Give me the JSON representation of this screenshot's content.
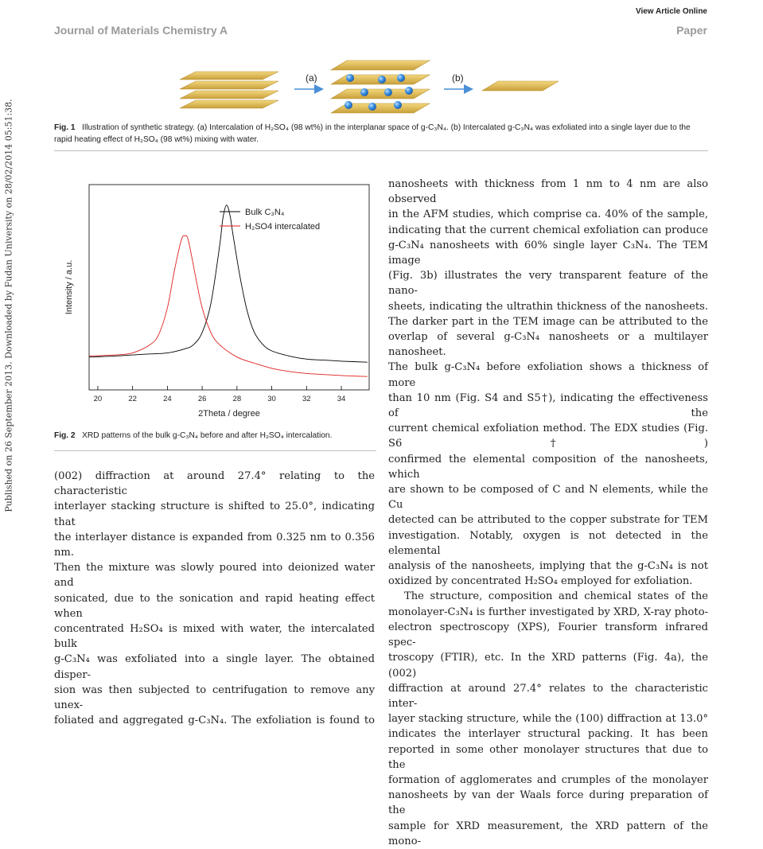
{
  "header": {
    "view_online": "View Article Online",
    "journal": "Journal of Materials Chemistry A",
    "section": "Paper"
  },
  "side_text": "Published on 26 September 2013. Downloaded by Fudan University on 28/02/2014 05:51:38.",
  "fig1": {
    "step_a": "(a)",
    "step_b": "(b)",
    "colors": {
      "sheet": "#e8c25a",
      "sheet_edge": "#b8902c",
      "ion": "#3b8fe0",
      "arrow": "#4a8fd8"
    },
    "caption_label": "Fig. 1",
    "caption_text": "Illustration of synthetic strategy. (a) Intercalation of H₂SO₄ (98 wt%) in the interplanar space of g-C₃N₄. (b) Intercalated g-C₃N₄ was exfoliated into a single layer due to the rapid heating effect of H₂SO₄ (98 wt%) mixing with water."
  },
  "fig2": {
    "caption_label": "Fig. 2",
    "caption_text": "XRD patterns of the bulk g-C₃N₄ before and after H₂SO₄ intercalation."
  },
  "chart_data": {
    "type": "line",
    "xlabel": "2Theta / degree",
    "ylabel": "Intensity / a.u.",
    "xlim": [
      19.5,
      35.6
    ],
    "ylim": [
      0,
      1
    ],
    "xticks": [
      20,
      22,
      24,
      26,
      28,
      30,
      32,
      34
    ],
    "grid": false,
    "legend_position": "top-right",
    "series": [
      {
        "name": "Bulk C₃N₄",
        "color": "#000000",
        "x": [
          19.5,
          21,
          22,
          23,
          24,
          25,
          25.5,
          26,
          26.5,
          27,
          27.2,
          27.4,
          27.6,
          27.8,
          28.2,
          28.6,
          29,
          29.5,
          30,
          31,
          32,
          33,
          34,
          35.5
        ],
        "y": [
          0.16,
          0.165,
          0.17,
          0.175,
          0.18,
          0.2,
          0.22,
          0.28,
          0.42,
          0.7,
          0.84,
          0.9,
          0.85,
          0.74,
          0.54,
          0.38,
          0.28,
          0.22,
          0.19,
          0.165,
          0.15,
          0.145,
          0.14,
          0.135
        ]
      },
      {
        "name": "H₂SO4 intercalated",
        "color": "#e02020",
        "x": [
          19.5,
          21,
          22,
          23,
          23.5,
          24,
          24.4,
          24.8,
          25,
          25.2,
          25.6,
          26,
          26.5,
          27,
          28,
          29,
          30,
          31,
          32,
          33,
          34,
          35.5
        ],
        "y": [
          0.165,
          0.17,
          0.18,
          0.22,
          0.27,
          0.4,
          0.58,
          0.73,
          0.75,
          0.73,
          0.56,
          0.4,
          0.28,
          0.22,
          0.16,
          0.13,
          0.105,
          0.09,
          0.08,
          0.075,
          0.07,
          0.065
        ]
      }
    ]
  },
  "left_col": [
    "(002) diffraction at around 27.4° relating to the characteristic",
    "interlayer stacking structure is shifted to 25.0°, indicating that",
    "the interlayer distance is expanded from 0.325 nm to 0.356 nm.",
    "Then the mixture was slowly poured into deionized water and",
    "sonicated, due to the sonication and rapid heating effect when",
    "concentrated H₂SO₄ is mixed with water, the intercalated bulk",
    "g-C₃N₄ was exfoliated into a single layer. The obtained disper-",
    "sion was then subjected to centrifugation to remove any unex-",
    "foliated and aggregated g-C₃N₄. The exfoliation is found to"
  ],
  "right_col": [
    "nanosheets with thickness from 1 nm to 4 nm are also observed",
    "in the AFM studies, which comprise ca. 40% of the sample,",
    "indicating that the current chemical exfoliation can produce",
    "g-C₃N₄ nanosheets with 60% single layer C₃N₄. The TEM image",
    "(Fig. 3b) illustrates the very transparent feature of the nano-",
    "sheets, indicating the ultrathin thickness of the nanosheets.",
    "The darker part in the TEM image can be attributed to the",
    "overlap of several g-C₃N₄ nanosheets or a multilayer nanosheet.",
    "The bulk g-C₃N₄ before exfoliation shows a thickness of more",
    "than 10 nm (Fig. S4 and S5†), indicating the effectiveness of the",
    "current chemical exfoliation method. The EDX studies (Fig. S6†)",
    "confirmed the elemental composition of the nanosheets, which",
    "are shown to be composed of C and N elements, while the Cu",
    "detected can be attributed to the copper substrate for TEM",
    "investigation. Notably, oxygen is not detected in the elemental",
    "analysis of the nanosheets, implying that the g-C₃N₄ is not",
    "oxidized by concentrated H₂SO₄ employed for exfoliation.",
    "The structure, composition and chemical states of the",
    "monolayer-C₃N₄ is further investigated by XRD, X-ray photo-",
    "electron spectroscopy (XPS), Fourier transform infrared spec-",
    "troscopy (FTIR), etc. In the XRD patterns (Fig. 4a), the (002)",
    "diffraction at around 27.4° relates to the characteristic inter-",
    "layer stacking structure, while the (100) diffraction at 13.0°",
    "indicates the interlayer structural packing. It has been",
    "reported in some other monolayer structures that due to the",
    "formation of agglomerates and crumples of the monolayer",
    "nanosheets by van der Waals force during preparation of the",
    "sample for XRD measurement, the XRD pattern of the mono-"
  ]
}
